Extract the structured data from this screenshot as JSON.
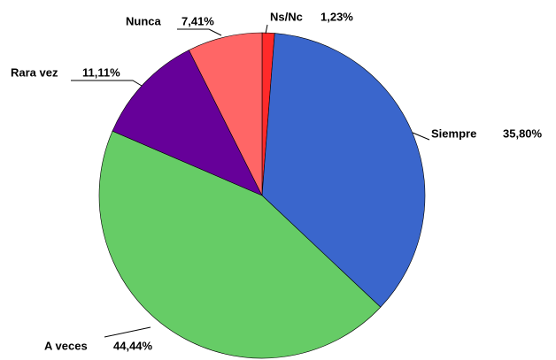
{
  "chart_data": {
    "type": "pie",
    "categories": [
      "Ns/Nc",
      "Siempre",
      "A veces",
      "Rara vez",
      "Nunca"
    ],
    "values": [
      1.23,
      35.8,
      44.44,
      11.11,
      7.41
    ],
    "value_labels": [
      "1,23%",
      "35,80%",
      "44,44%",
      "11,11%",
      "7,41%"
    ],
    "colors": [
      "#ff2a2a",
      "#3a66cc",
      "#66cc66",
      "#660099",
      "#ff6666"
    ]
  }
}
